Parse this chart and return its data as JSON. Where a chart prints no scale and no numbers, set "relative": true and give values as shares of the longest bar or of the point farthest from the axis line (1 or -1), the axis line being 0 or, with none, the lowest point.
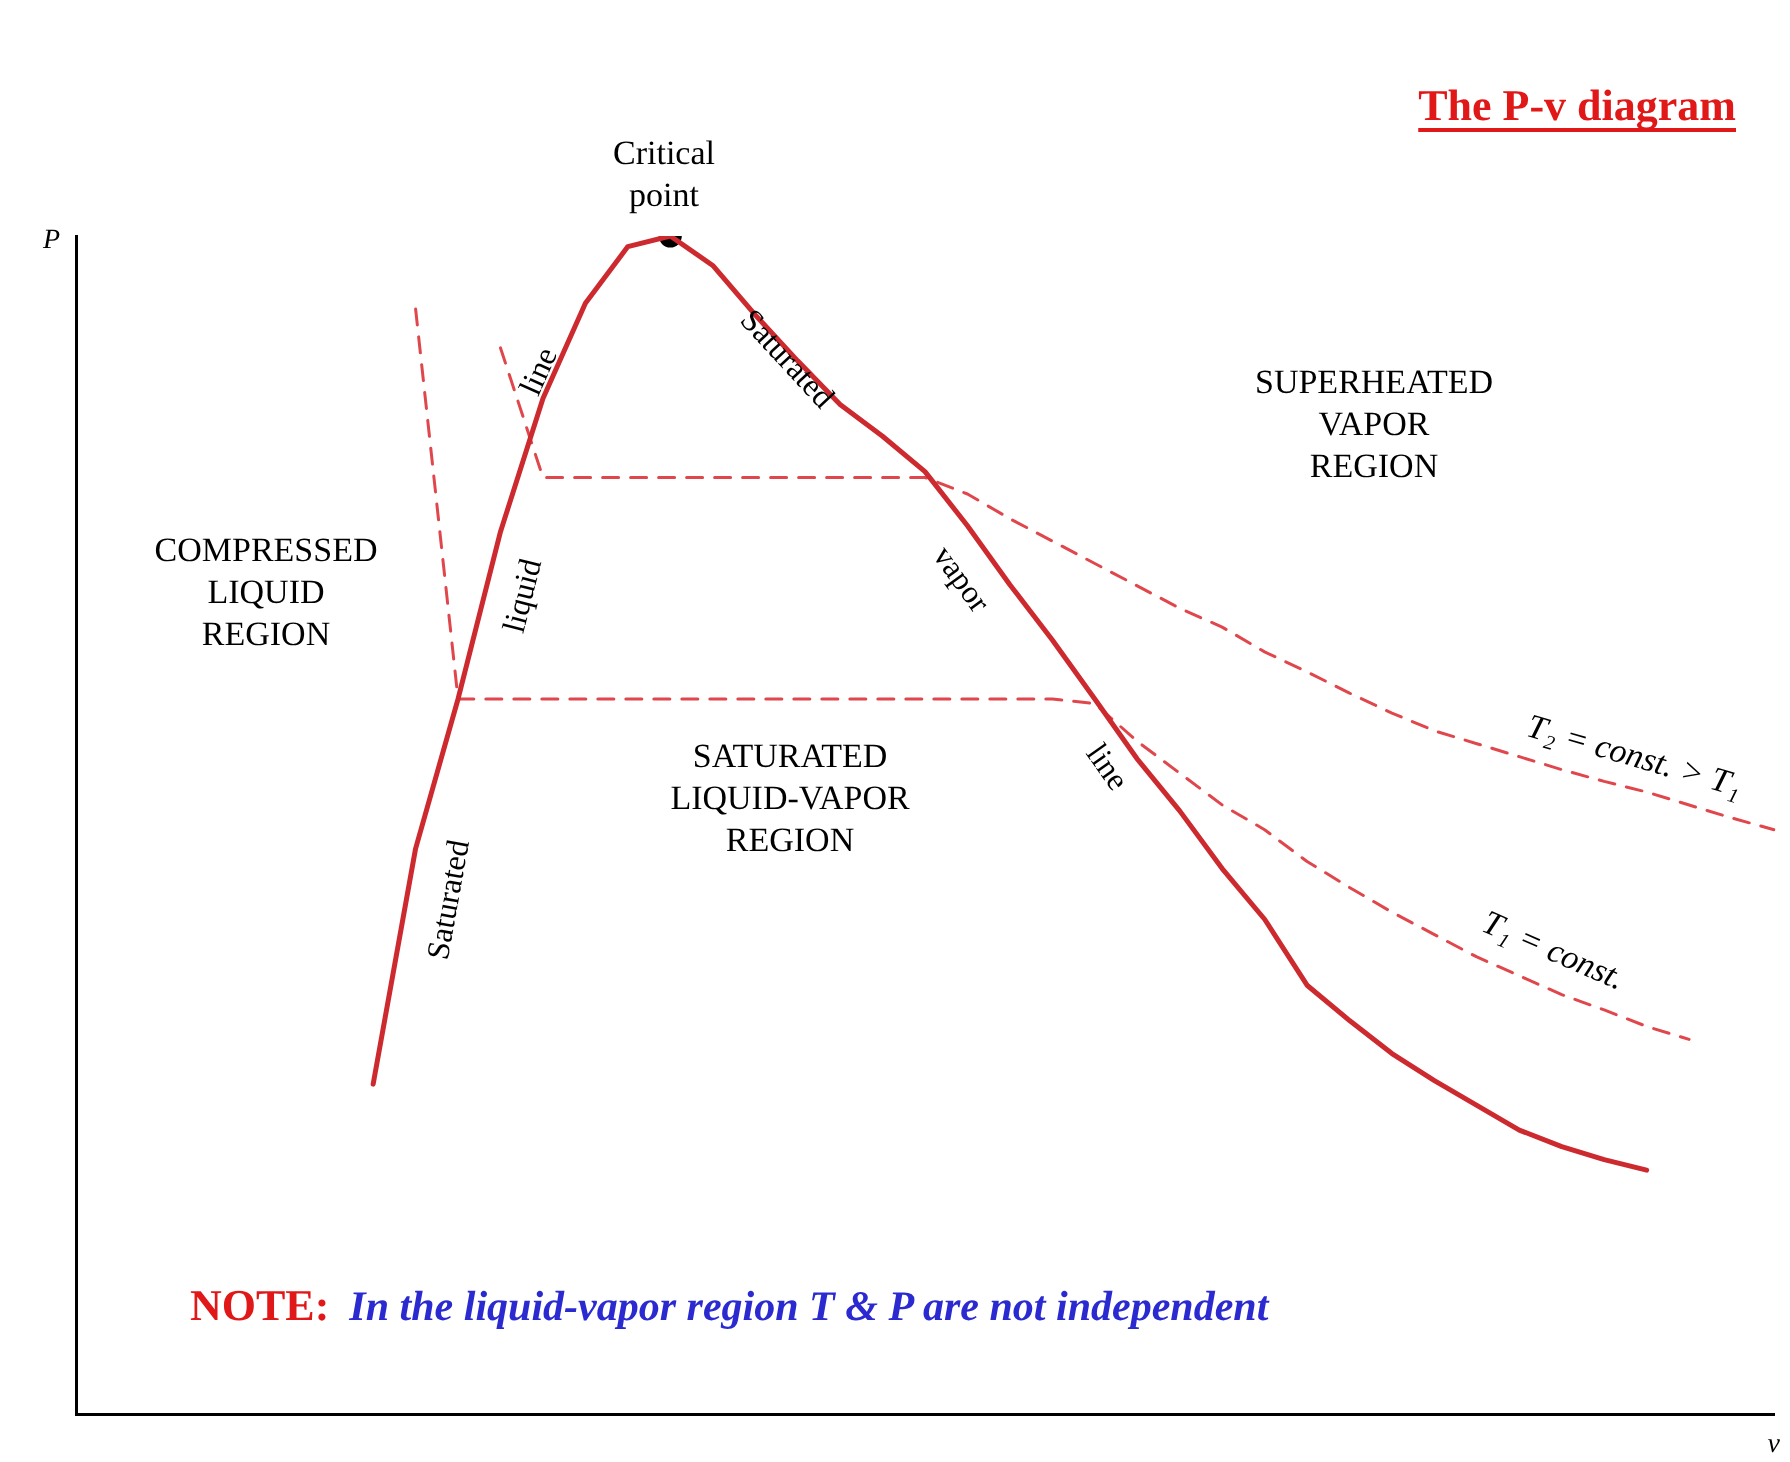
{
  "chart_data": {
    "type": "line",
    "relative": true,
    "title": "The P-v diagram",
    "xlabel": "v",
    "ylabel": "P",
    "grid": false,
    "legend": false,
    "marker": "none",
    "categories": [
      null,
      null,
      null,
      null,
      null,
      null,
      null,
      null,
      null,
      null,
      null,
      null,
      null,
      null,
      null,
      null,
      null,
      null,
      null,
      null,
      null,
      null,
      null,
      null,
      null,
      null,
      null,
      null,
      null,
      null,
      null,
      null,
      null,
      null,
      null,
      null,
      null,
      null,
      null,
      null,
      null
    ],
    "series": [
      {
        "color": "#cc2a2f",
        "line_style": "solid",
        "values": [
          null,
          null,
          null,
          null,
          null,
          null,
          null,
          0.28,
          0.48,
          0.607,
          0.749,
          0.862,
          0.943,
          0.991,
          1,
          0.975,
          0.933,
          0.894,
          0.857,
          0.83,
          0.8,
          0.754,
          0.704,
          0.657,
          0.607,
          0.556,
          0.512,
          0.463,
          0.42,
          0.364,
          0.334,
          0.306,
          0.283,
          0.262,
          0.241,
          0.227,
          0.216,
          0.207,
          null,
          null,
          null
        ]
      },
      {
        "name": "T₁ = const.",
        "color": "#e0474c",
        "line_style": "dashed",
        "values": [
          null,
          null,
          null,
          null,
          null,
          null,
          null,
          null,
          0.938,
          0.607,
          0.607,
          0.607,
          0.607,
          0.607,
          0.607,
          0.607,
          0.607,
          0.607,
          0.607,
          0.607,
          0.607,
          0.607,
          0.607,
          0.607,
          0.603,
          0.571,
          0.544,
          0.517,
          0.496,
          0.469,
          0.447,
          0.426,
          0.407,
          0.388,
          0.372,
          0.356,
          0.343,
          0.329,
          0.318,
          null,
          null
        ]
      },
      {
        "name": "T₂ = const. > T₁",
        "color": "#e0474c",
        "line_style": "dashed",
        "values": [
          null,
          null,
          null,
          null,
          null,
          null,
          null,
          null,
          null,
          null,
          0.905,
          0.795,
          0.795,
          0.795,
          0.795,
          0.795,
          0.795,
          0.795,
          0.795,
          0.795,
          0.795,
          0.781,
          0.76,
          0.741,
          0.722,
          0.703,
          0.684,
          0.668,
          0.647,
          0.63,
          0.612,
          0.595,
          0.58,
          0.569,
          0.558,
          0.547,
          0.537,
          0.528,
          0.517,
          0.506,
          0.496
        ]
      },
      {
        "color": "#000000",
        "marker": "circle",
        "values": [
          null,
          null,
          null,
          null,
          null,
          null,
          null,
          null,
          null,
          null,
          null,
          null,
          null,
          null,
          1,
          null,
          null,
          null,
          null,
          null,
          null,
          null,
          null,
          null,
          null,
          null,
          null,
          null,
          null,
          null,
          null,
          null,
          null,
          null,
          null,
          null,
          null,
          null,
          null,
          null,
          null
        ]
      }
    ],
    "annotations": [
      "Critical\npoint",
      "COMPRESSED\nLIQUID\nREGION",
      "SUPERHEATED\nVAPOR\nREGION",
      "SATURATED\nLIQUID-VAPOR\nREGION",
      "Saturated",
      "liquid",
      "line",
      "Saturated",
      "vapor",
      "line",
      "NOTE:",
      "In the liquid-vapor region T & P are not independent"
    ]
  }
}
